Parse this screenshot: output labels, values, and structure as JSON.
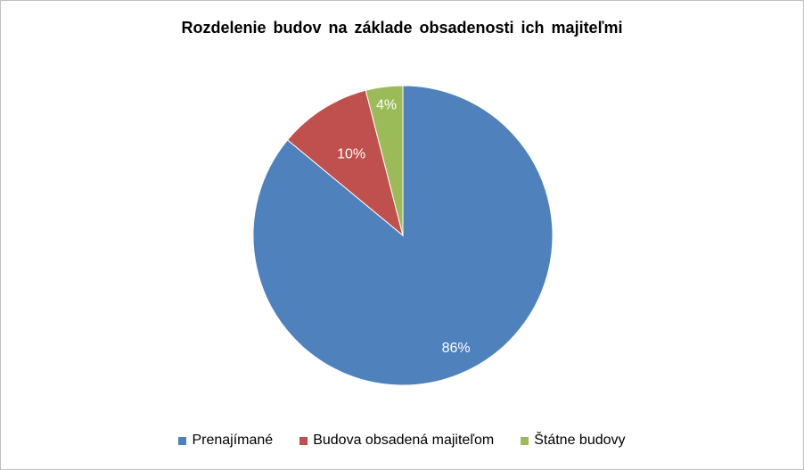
{
  "chart_data": {
    "type": "pie",
    "title": "Rozdelenie budov na základe obsadenosti ich majiteľmi",
    "categories": [
      "Prenajímané",
      "Budova obsadená majiteľom",
      "Štátne budovy"
    ],
    "values": [
      86,
      10,
      4
    ],
    "data_labels": [
      "86%",
      "10%",
      "4%"
    ],
    "colors": [
      "#4f81bd",
      "#c0504d",
      "#9bbb59"
    ],
    "legend_position": "bottom",
    "start_angle": "12 o'clock",
    "direction": "clockwise"
  }
}
